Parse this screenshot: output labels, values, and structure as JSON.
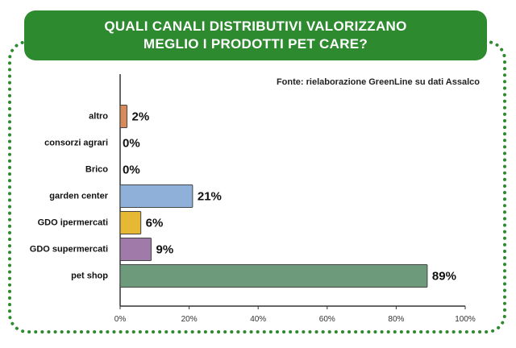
{
  "title": {
    "line1": "QUALI CANALI DISTRIBUTIVI VALORIZZANO",
    "line2": "MEGLIO I PRODOTTI PET CARE?"
  },
  "source": "Fonte: rielaborazione GreenLine su dati Assalco",
  "colors": {
    "frame": "#2e8a2f",
    "title_bg": "#2e8a2f"
  },
  "chart_data": {
    "type": "bar",
    "orientation": "horizontal",
    "title": "QUALI CANALI DISTRIBUTIVI VALORIZZANO MEGLIO I PRODOTTI PET CARE?",
    "categories": [
      "altro",
      "consorzi agrari",
      "Brico",
      "garden center",
      "GDO ipermercati",
      "GDO supermercati",
      "pet shop"
    ],
    "values": [
      2,
      0,
      0,
      21,
      6,
      9,
      89
    ],
    "value_labels": [
      "2%",
      "0%",
      "0%",
      "21%",
      "6%",
      "9%",
      "89%"
    ],
    "bar_colors": [
      "#d98a5a",
      "#d98a5a",
      "#d98a5a",
      "#8fb1d9",
      "#e7b833",
      "#a07aa8",
      "#6e9a7c"
    ],
    "xlim": [
      0,
      100
    ],
    "xticks": [
      "0%",
      "20%",
      "40%",
      "60%",
      "80%",
      "100%"
    ],
    "xtick_values": [
      0,
      20,
      40,
      60,
      80,
      100
    ],
    "grid": false,
    "legend": "none"
  }
}
